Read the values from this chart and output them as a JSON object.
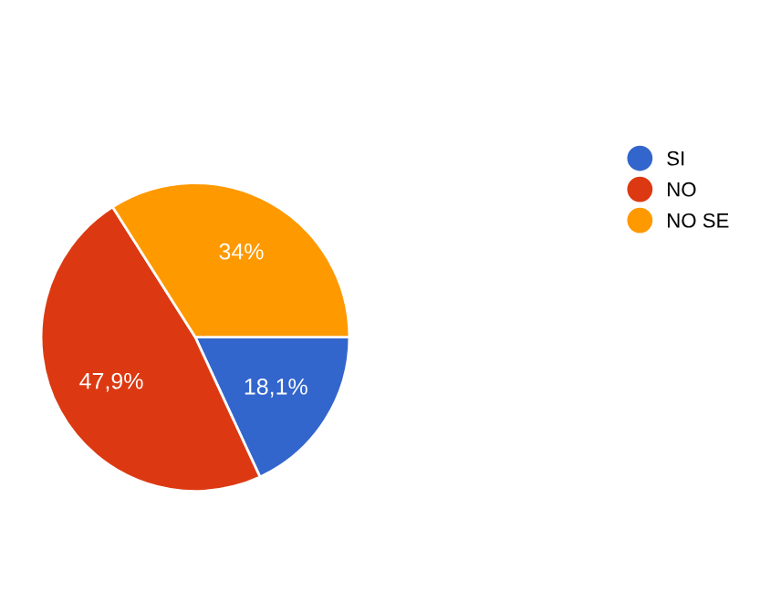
{
  "chart_data": {
    "type": "pie",
    "categories": [
      "SI",
      "NO",
      "NO SE"
    ],
    "values": [
      18.1,
      47.9,
      34
    ],
    "value_labels": [
      "18,1%",
      "47,9%",
      "34%"
    ],
    "colors": [
      "#3366cc",
      "#dc3912",
      "#ff9900"
    ],
    "legend": "right"
  }
}
